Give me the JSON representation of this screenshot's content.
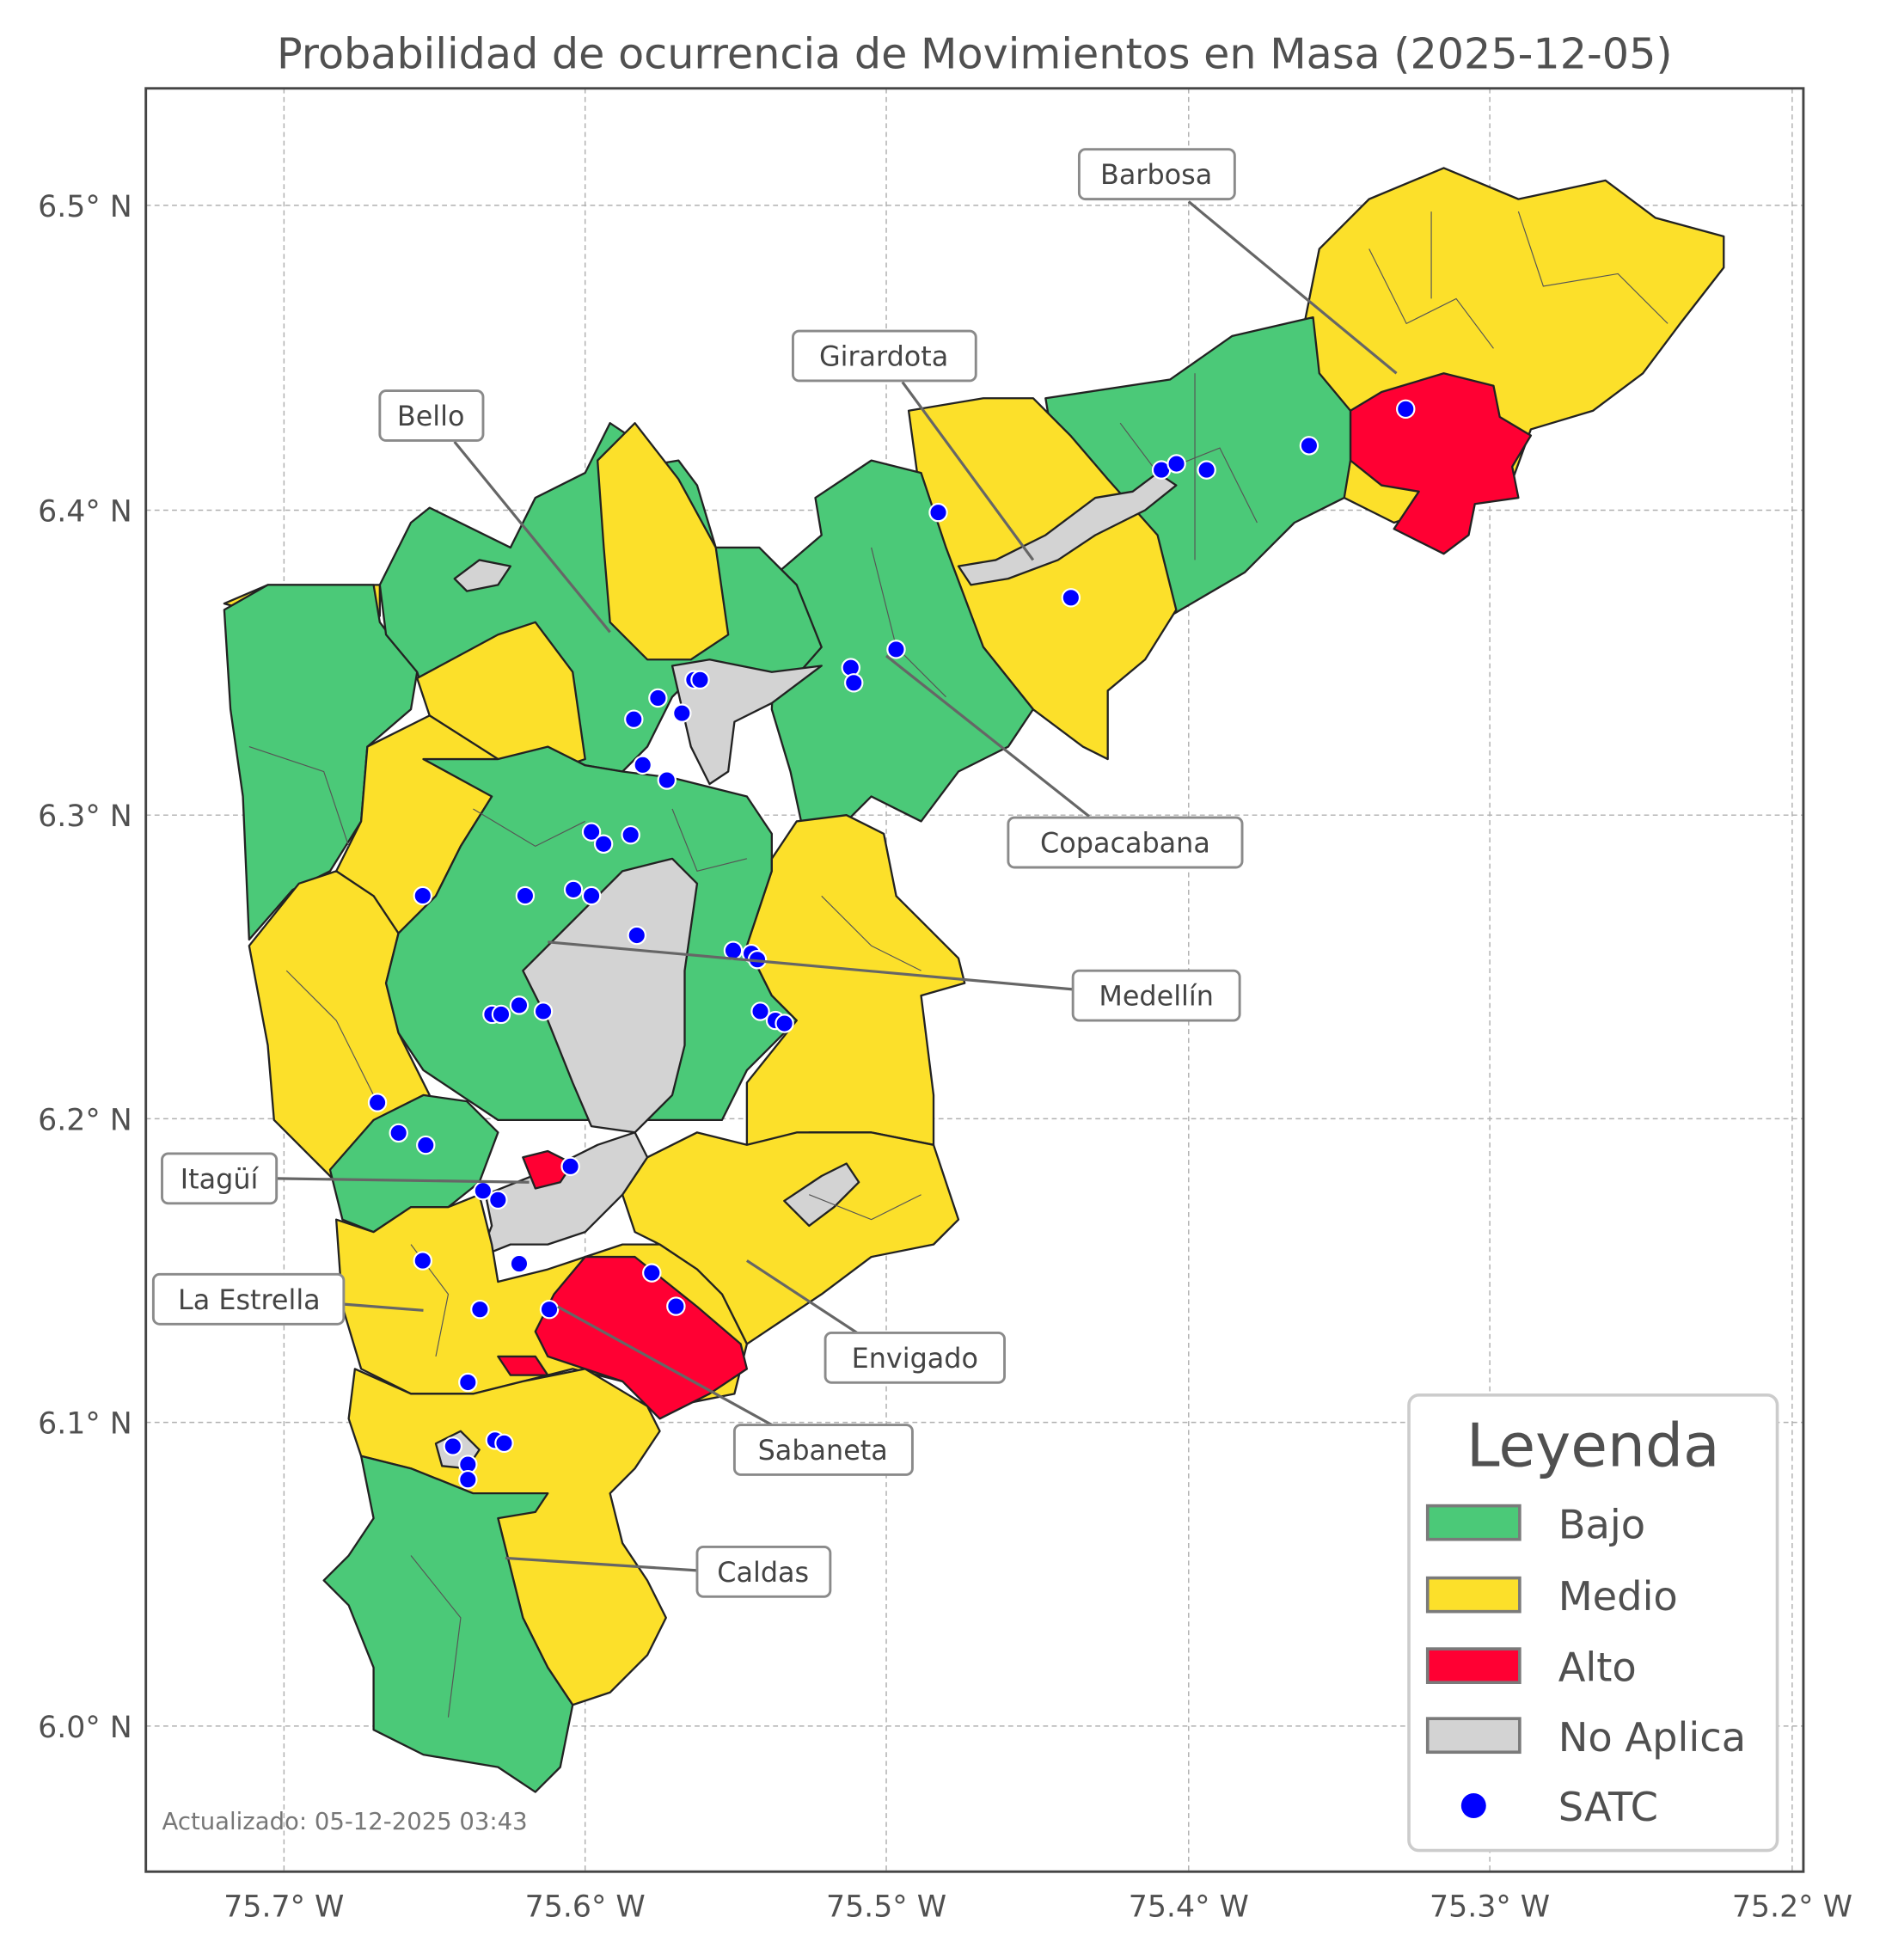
{
  "title": "Probabilidad de ocurrencia de Movimientos en Masa (2025-12-05)",
  "footer": "Actualizado: 05-12-2025 03:43",
  "colors": {
    "bajo": "#4bc978",
    "medio": "#fce02a",
    "alto": "#ff0033",
    "no_aplica": "#d3d3d3",
    "satc": "#0000ff"
  },
  "axes": {
    "x_ticks": [
      "75.7° W",
      "75.6° W",
      "75.5° W",
      "75.4° W",
      "75.3° W",
      "75.2° W"
    ],
    "y_ticks": [
      "6.5° N",
      "6.4° N",
      "6.3° N",
      "6.2° N",
      "6.1° N",
      "6.0° N"
    ]
  },
  "legend": {
    "title": "Leyenda",
    "items": [
      {
        "label": "Bajo",
        "color": "#4bc978"
      },
      {
        "label": "Medio",
        "color": "#fce02a"
      },
      {
        "label": "Alto",
        "color": "#ff0033"
      },
      {
        "label": "No Aplica",
        "color": "#d3d3d3"
      },
      {
        "label": "SATC",
        "color": "#0000ff"
      }
    ]
  },
  "annotations": [
    "Barbosa",
    "Girardota",
    "Bello",
    "Copacabana",
    "Medellín",
    "Itagüí",
    "La Estrella",
    "Envigado",
    "Sabaneta",
    "Caldas"
  ],
  "satc_points": [
    [
      -75.483,
      6.399
    ],
    [
      -75.409,
      6.413
    ],
    [
      -75.404,
      6.415
    ],
    [
      -75.394,
      6.413
    ],
    [
      -75.36,
      6.421
    ],
    [
      -75.328,
      6.433
    ],
    [
      -75.439,
      6.371
    ],
    [
      -75.497,
      6.354
    ],
    [
      -75.512,
      6.348
    ],
    [
      -75.511,
      6.343
    ],
    [
      -75.564,
      6.344
    ],
    [
      -75.562,
      6.344
    ],
    [
      -75.576,
      6.338
    ],
    [
      -75.584,
      6.331
    ],
    [
      -75.568,
      6.333
    ],
    [
      -75.581,
      6.316
    ],
    [
      -75.573,
      6.311
    ],
    [
      -75.598,
      6.294
    ],
    [
      -75.594,
      6.29
    ],
    [
      -75.585,
      6.293
    ],
    [
      -75.654,
      6.273
    ],
    [
      -75.62,
      6.273
    ],
    [
      -75.604,
      6.275
    ],
    [
      -75.598,
      6.273
    ],
    [
      -75.583,
      6.26
    ],
    [
      -75.551,
      6.255
    ],
    [
      -75.545,
      6.254
    ],
    [
      -75.543,
      6.252
    ],
    [
      -75.542,
      6.235
    ],
    [
      -75.537,
      6.232
    ],
    [
      -75.534,
      6.231
    ],
    [
      -75.631,
      6.234
    ],
    [
      -75.628,
      6.234
    ],
    [
      -75.622,
      6.237
    ],
    [
      -75.614,
      6.235
    ],
    [
      -75.669,
      6.205
    ],
    [
      -75.662,
      6.195
    ],
    [
      -75.653,
      6.191
    ],
    [
      -75.605,
      6.184
    ],
    [
      -75.634,
      6.176
    ],
    [
      -75.629,
      6.173
    ],
    [
      -75.654,
      6.153
    ],
    [
      -75.622,
      6.152
    ],
    [
      -75.578,
      6.149
    ],
    [
      -75.57,
      6.138
    ],
    [
      -75.612,
      6.137
    ],
    [
      -75.635,
      6.137
    ],
    [
      -75.639,
      6.113
    ],
    [
      -75.644,
      6.092
    ],
    [
      -75.63,
      6.094
    ],
    [
      -75.627,
      6.093
    ],
    [
      -75.639,
      6.086
    ],
    [
      -75.639,
      6.081
    ]
  ]
}
